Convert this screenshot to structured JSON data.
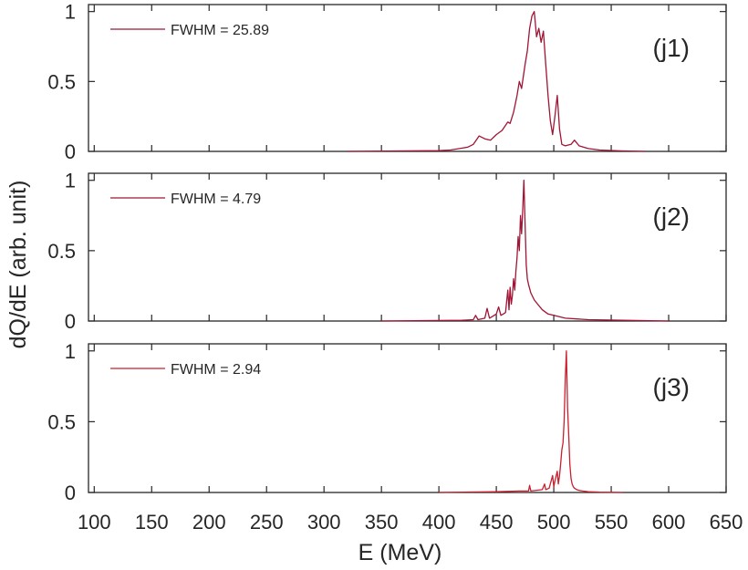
{
  "chart_data": [
    {
      "type": "line",
      "label": "(j1)",
      "legend": "FWHM = 25.89",
      "color": "#a01535",
      "xlim": [
        95,
        650
      ],
      "ylim": [
        0,
        1.05
      ],
      "yticks": [
        "0",
        "0.5",
        "1"
      ],
      "x": [
        320,
        400,
        410,
        425,
        430,
        435,
        440,
        445,
        450,
        455,
        460,
        462,
        465,
        468,
        470,
        472,
        475,
        477,
        479,
        481,
        483,
        485,
        487,
        489,
        491,
        493,
        495,
        497,
        499,
        501,
        503,
        505,
        507,
        510,
        515,
        518,
        522,
        530,
        540,
        560,
        580
      ],
      "y": [
        0,
        0.005,
        0.01,
        0.03,
        0.05,
        0.11,
        0.09,
        0.08,
        0.12,
        0.15,
        0.21,
        0.2,
        0.28,
        0.4,
        0.5,
        0.45,
        0.62,
        0.72,
        0.88,
        0.97,
        1.0,
        0.82,
        0.88,
        0.78,
        0.86,
        0.62,
        0.4,
        0.22,
        0.12,
        0.25,
        0.4,
        0.16,
        0.05,
        0.04,
        0.05,
        0.08,
        0.04,
        0.02,
        0.01,
        0.003,
        0
      ]
    },
    {
      "type": "line",
      "label": "(j2)",
      "legend": "FWHM = 4.79",
      "color": "#a01535",
      "xlim": [
        95,
        650
      ],
      "ylim": [
        0,
        1.05
      ],
      "yticks": [
        "0",
        "0.5",
        "1"
      ],
      "x": [
        350,
        420,
        430,
        432,
        434,
        440,
        442,
        444,
        446,
        450,
        452,
        454,
        456,
        458,
        460,
        461,
        462,
        463,
        464,
        465,
        466,
        467,
        468,
        469,
        470,
        471,
        472,
        473,
        474,
        475,
        476,
        477,
        478,
        480,
        483,
        486,
        490,
        495,
        500,
        510,
        530,
        560,
        600
      ],
      "y": [
        0,
        0.005,
        0.01,
        0.04,
        0.01,
        0.02,
        0.09,
        0.02,
        0.03,
        0.05,
        0.1,
        0.04,
        0.05,
        0.06,
        0.22,
        0.08,
        0.24,
        0.12,
        0.18,
        0.3,
        0.22,
        0.35,
        0.45,
        0.6,
        0.5,
        0.75,
        0.62,
        0.8,
        1.0,
        0.7,
        0.4,
        0.3,
        0.26,
        0.2,
        0.15,
        0.12,
        0.08,
        0.05,
        0.04,
        0.02,
        0.01,
        0.005,
        0
      ]
    },
    {
      "type": "line",
      "label": "(j3)",
      "legend": "FWHM = 2.94",
      "color": "#c8202e",
      "xlim": [
        95,
        650
      ],
      "ylim": [
        0,
        1.05
      ],
      "yticks": [
        "0",
        "0.5",
        "1"
      ],
      "x": [
        400,
        450,
        470,
        478,
        479,
        480,
        490,
        492,
        493,
        496,
        499,
        500,
        501,
        503,
        504,
        505,
        506,
        507,
        508,
        509,
        510,
        511,
        512,
        513,
        514,
        515,
        516,
        517,
        518,
        520,
        522,
        525,
        530,
        540,
        560
      ],
      "y": [
        0,
        0.005,
        0.01,
        0.01,
        0.05,
        0.01,
        0.02,
        0.06,
        0.02,
        0.03,
        0.12,
        0.04,
        0.08,
        0.15,
        0.06,
        0.12,
        0.2,
        0.3,
        0.35,
        0.5,
        0.8,
        1.0,
        0.6,
        0.4,
        0.2,
        0.1,
        0.06,
        0.04,
        0.03,
        0.02,
        0.015,
        0.01,
        0.005,
        0.002,
        0
      ]
    }
  ],
  "x_axis": {
    "label": "E (MeV)",
    "ticks": [
      "100",
      "150",
      "200",
      "250",
      "300",
      "350",
      "400",
      "450",
      "500",
      "550",
      "600",
      "650"
    ]
  },
  "y_axis": {
    "label": "dQ/dE (arb. unit)"
  }
}
